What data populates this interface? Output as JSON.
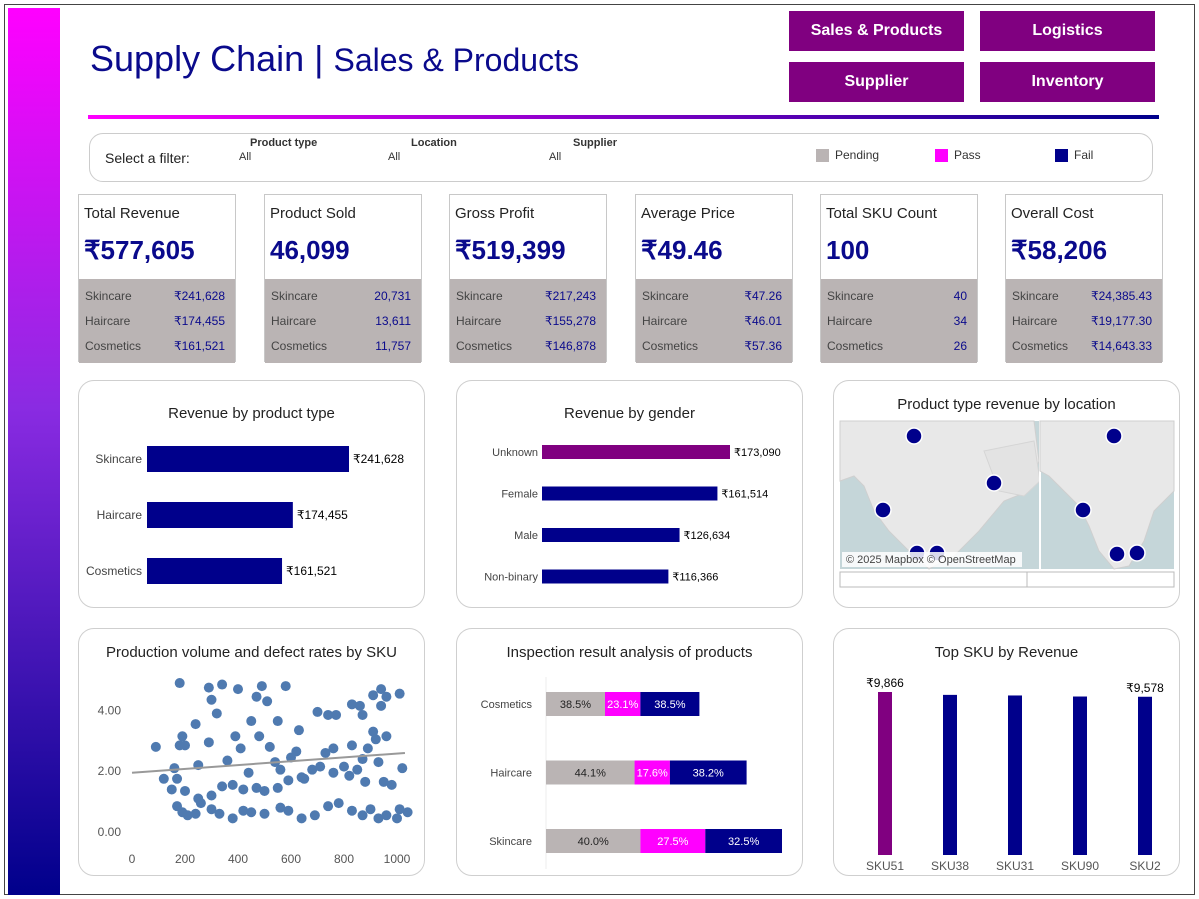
{
  "header": {
    "title_main": "Supply Chain | ",
    "title_sub": "Sales & Products"
  },
  "nav": {
    "sales_products": "Sales & Products",
    "logistics": "Logistics",
    "supplier": "Supplier",
    "inventory": "Inventory"
  },
  "filters": {
    "prompt": "Select a filter:",
    "items": [
      {
        "label": "Product type",
        "value": "All"
      },
      {
        "label": "Location",
        "value": "All"
      },
      {
        "label": "Supplier",
        "value": "All"
      }
    ],
    "legend": [
      {
        "label": "Pending",
        "color": "#bab4b4"
      },
      {
        "label": "Pass",
        "color": "#ff00ff"
      },
      {
        "label": "Fail",
        "color": "#00008b"
      }
    ]
  },
  "kpis": [
    {
      "title": "Total Revenue",
      "value": "₹577,605",
      "rows": [
        [
          "Skincare",
          "₹241,628"
        ],
        [
          "Haircare",
          "₹174,455"
        ],
        [
          "Cosmetics",
          "₹161,521"
        ]
      ]
    },
    {
      "title": "Product Sold",
      "value": "46,099",
      "rows": [
        [
          "Skincare",
          "20,731"
        ],
        [
          "Haircare",
          "13,611"
        ],
        [
          "Cosmetics",
          "11,757"
        ]
      ]
    },
    {
      "title": "Gross Profit",
      "value": "₹519,399",
      "rows": [
        [
          "Skincare",
          "₹217,243"
        ],
        [
          "Haircare",
          "₹155,278"
        ],
        [
          "Cosmetics",
          "₹146,878"
        ]
      ]
    },
    {
      "title": "Average Price",
      "value": "₹49.46",
      "rows": [
        [
          "Skincare",
          "₹47.26"
        ],
        [
          "Haircare",
          "₹46.01"
        ],
        [
          "Cosmetics",
          "₹57.36"
        ]
      ]
    },
    {
      "title": "Total SKU Count",
      "value": "100",
      "rows": [
        [
          "Skincare",
          "40"
        ],
        [
          "Haircare",
          "34"
        ],
        [
          "Cosmetics",
          "26"
        ]
      ]
    },
    {
      "title": "Overall Cost",
      "value": "₹58,206",
      "rows": [
        [
          "Skincare",
          "₹24,385.43"
        ],
        [
          "Haircare",
          "₹19,177.30"
        ],
        [
          "Cosmetics",
          "₹14,643.33"
        ]
      ]
    }
  ],
  "charts": {
    "rev_type_title": "Revenue by product type",
    "rev_gender_title": "Revenue by gender",
    "map_title": "Product type revenue by location",
    "map_credit": "© 2025 Mapbox © OpenStreetMap",
    "scatter_title": "Production volume and defect rates by SKU",
    "inspection_title": "Inspection result analysis of products",
    "topsku_title": "Top SKU by Revenue"
  },
  "chart_data": [
    {
      "type": "bar",
      "title": "Revenue by product type",
      "categories": [
        "Skincare",
        "Haircare",
        "Cosmetics"
      ],
      "values": [
        241628,
        174455,
        161521
      ],
      "labels": [
        "₹241,628",
        "₹174,455",
        "₹161,521"
      ],
      "color": "#00008b"
    },
    {
      "type": "bar",
      "title": "Revenue by gender",
      "categories": [
        "Unknown",
        "Female",
        "Male",
        "Non-binary"
      ],
      "values": [
        173090,
        161514,
        126634,
        116366
      ],
      "labels": [
        "₹173,090",
        "₹161,514",
        "₹126,634",
        "₹116,366"
      ],
      "colors": [
        "#800080",
        "#00008b",
        "#00008b",
        "#00008b"
      ]
    },
    {
      "type": "scatter",
      "title": "Production volume and defect rates by SKU",
      "xlim": [
        0,
        1000
      ],
      "ylim": [
        0,
        5
      ],
      "xticks": [
        "0",
        "200",
        "400",
        "600",
        "800",
        "1000"
      ],
      "yticks": [
        "0.00",
        "2.00",
        "4.00"
      ],
      "trend": [
        [
          0,
          1.95
        ],
        [
          1030,
          2.6
        ]
      ],
      "points": [
        [
          180,
          4.9
        ],
        [
          290,
          4.75
        ],
        [
          340,
          4.85
        ],
        [
          400,
          4.7
        ],
        [
          490,
          4.8
        ],
        [
          580,
          4.8
        ],
        [
          240,
          3.55
        ],
        [
          300,
          4.35
        ],
        [
          320,
          3.9
        ],
        [
          450,
          3.65
        ],
        [
          470,
          4.45
        ],
        [
          510,
          4.3
        ],
        [
          550,
          3.65
        ],
        [
          630,
          3.35
        ],
        [
          700,
          3.95
        ],
        [
          740,
          3.85
        ],
        [
          770,
          3.85
        ],
        [
          830,
          4.2
        ],
        [
          860,
          4.15
        ],
        [
          870,
          3.85
        ],
        [
          910,
          4.5
        ],
        [
          940,
          4.7
        ],
        [
          960,
          4.45
        ],
        [
          1010,
          4.55
        ],
        [
          920,
          3.05
        ],
        [
          960,
          3.15
        ],
        [
          940,
          4.15
        ],
        [
          90,
          2.8
        ],
        [
          180,
          2.85
        ],
        [
          200,
          2.85
        ],
        [
          190,
          3.15
        ],
        [
          160,
          2.1
        ],
        [
          170,
          1.75
        ],
        [
          120,
          1.75
        ],
        [
          150,
          1.4
        ],
        [
          250,
          2.2
        ],
        [
          290,
          2.95
        ],
        [
          360,
          2.35
        ],
        [
          410,
          2.75
        ],
        [
          390,
          3.15
        ],
        [
          440,
          1.95
        ],
        [
          480,
          3.15
        ],
        [
          520,
          2.8
        ],
        [
          540,
          2.3
        ],
        [
          560,
          2.05
        ],
        [
          600,
          2.45
        ],
        [
          620,
          2.65
        ],
        [
          650,
          1.75
        ],
        [
          680,
          2.05
        ],
        [
          730,
          2.6
        ],
        [
          760,
          2.75
        ],
        [
          800,
          2.15
        ],
        [
          830,
          2.85
        ],
        [
          850,
          2.05
        ],
        [
          870,
          2.4
        ],
        [
          890,
          2.75
        ],
        [
          910,
          3.3
        ],
        [
          930,
          2.3
        ],
        [
          950,
          1.65
        ],
        [
          980,
          1.55
        ],
        [
          1020,
          2.1
        ],
        [
          880,
          1.65
        ],
        [
          820,
          1.85
        ],
        [
          760,
          1.95
        ],
        [
          710,
          2.15
        ],
        [
          640,
          1.8
        ],
        [
          590,
          1.7
        ],
        [
          550,
          1.45
        ],
        [
          500,
          1.35
        ],
        [
          470,
          1.45
        ],
        [
          420,
          1.4
        ],
        [
          380,
          1.55
        ],
        [
          340,
          1.5
        ],
        [
          300,
          1.2
        ],
        [
          250,
          1.1
        ],
        [
          200,
          1.35
        ],
        [
          170,
          0.85
        ],
        [
          190,
          0.65
        ],
        [
          210,
          0.55
        ],
        [
          240,
          0.6
        ],
        [
          260,
          0.95
        ],
        [
          300,
          0.75
        ],
        [
          330,
          0.6
        ],
        [
          380,
          0.45
        ],
        [
          420,
          0.7
        ],
        [
          450,
          0.65
        ],
        [
          500,
          0.6
        ],
        [
          560,
          0.8
        ],
        [
          590,
          0.7
        ],
        [
          640,
          0.45
        ],
        [
          690,
          0.55
        ],
        [
          740,
          0.85
        ],
        [
          780,
          0.95
        ],
        [
          830,
          0.7
        ],
        [
          870,
          0.55
        ],
        [
          900,
          0.75
        ],
        [
          930,
          0.45
        ],
        [
          960,
          0.55
        ],
        [
          1010,
          0.75
        ],
        [
          1000,
          0.45
        ],
        [
          1040,
          0.65
        ]
      ]
    },
    {
      "type": "bar",
      "title": "Inspection result analysis of products",
      "stacked": true,
      "categories": [
        "Cosmetics",
        "Haircare",
        "Skincare"
      ],
      "series": [
        {
          "name": "Pending",
          "values": [
            38.5,
            44.1,
            40.0
          ],
          "color": "#bab4b4"
        },
        {
          "name": "Pass",
          "values": [
            23.1,
            17.6,
            27.5
          ],
          "color": "#ff00ff"
        },
        {
          "name": "Fail",
          "values": [
            38.5,
            38.2,
            32.5
          ],
          "color": "#00008b"
        }
      ],
      "labels": [
        [
          "38.5%",
          "23.1%",
          "38.5%"
        ],
        [
          "44.1%",
          "17.6%",
          "38.2%"
        ],
        [
          "40.0%",
          "27.5%",
          "32.5%"
        ]
      ],
      "totals_relative": [
        26,
        34,
        40
      ]
    },
    {
      "type": "bar",
      "title": "Top SKU by Revenue",
      "categories": [
        "SKU51",
        "SKU38",
        "SKU31",
        "SKU90",
        "SKU2"
      ],
      "values": [
        9866,
        9692,
        9656,
        9593,
        9578
      ],
      "labels": [
        "₹9,866",
        "",
        "",
        "",
        "₹9,578"
      ],
      "colors": [
        "#800080",
        "#00008b",
        "#00008b",
        "#00008b",
        "#00008b"
      ]
    }
  ]
}
